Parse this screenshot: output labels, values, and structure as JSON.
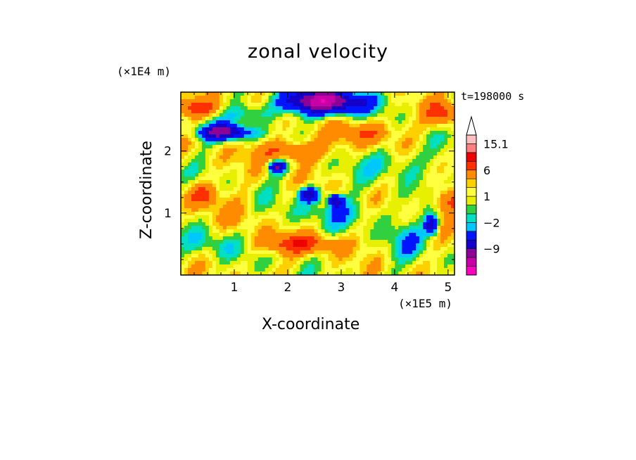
{
  "chart_data": {
    "type": "heatmap",
    "title": "zonal velocity",
    "xlabel": "X-coordinate",
    "ylabel": "Z-coordinate",
    "x_unit_label": "(×1E5 m)",
    "y_unit_label": "(×1E4 m)",
    "time_label": "t=198000 s",
    "xlim": [
      0,
      5.12
    ],
    "ylim": [
      0,
      2.95
    ],
    "x_ticks": [
      {
        "value": 1,
        "label": "1"
      },
      {
        "value": 2,
        "label": "2"
      },
      {
        "value": 3,
        "label": "3"
      },
      {
        "value": 4,
        "label": "4"
      },
      {
        "value": 5,
        "label": "5"
      }
    ],
    "y_ticks": [
      {
        "value": 1,
        "label": "1"
      },
      {
        "value": 2,
        "label": "2"
      }
    ],
    "colorbar": {
      "levels": [
        -15,
        -12,
        -9,
        -6,
        -3,
        -2,
        -1,
        0,
        1,
        2,
        3,
        6,
        9,
        12,
        15.1
      ],
      "colors": [
        "#ff00c0",
        "#c800a8",
        "#8c0096",
        "#1400c8",
        "#0014ff",
        "#00c8ff",
        "#00e0c0",
        "#30d040",
        "#e6f000",
        "#ffff40",
        "#ffd000",
        "#ff8c00",
        "#ff3000",
        "#ee0000",
        "#ff8080",
        "#ffc0c0"
      ],
      "tick_labels": [
        {
          "value": 15.1,
          "label": "15.1"
        },
        {
          "value": 6,
          "label": "6"
        },
        {
          "value": 1,
          "label": "1"
        },
        {
          "value": -2,
          "label": "−2"
        },
        {
          "value": -9,
          "label": "−9"
        }
      ]
    },
    "field_features": [
      {
        "x": 2.7,
        "z": 2.8,
        "sx": 0.8,
        "sz": 0.2,
        "amp": -14
      },
      {
        "x": 0.8,
        "z": 2.3,
        "sx": 0.5,
        "sz": 0.12,
        "amp": -11
      },
      {
        "x": 1.8,
        "z": 1.75,
        "sx": 0.15,
        "sz": 0.1,
        "amp": -11
      },
      {
        "x": 2.4,
        "z": 1.3,
        "sx": 0.2,
        "sz": 0.12,
        "amp": -10
      },
      {
        "x": 2.9,
        "z": 1.2,
        "sx": 0.15,
        "sz": 0.12,
        "amp": -9
      },
      {
        "x": 4.7,
        "z": 0.8,
        "sx": 0.12,
        "sz": 0.15,
        "amp": -9
      },
      {
        "x": 0.3,
        "z": 2.7,
        "sx": 0.4,
        "sz": 0.15,
        "amp": 7
      },
      {
        "x": 2.0,
        "z": 2.0,
        "sx": 0.6,
        "sz": 0.18,
        "amp": 6
      },
      {
        "x": 3.5,
        "z": 2.3,
        "sx": 0.5,
        "sz": 0.2,
        "amp": 5
      },
      {
        "x": 0.4,
        "z": 1.3,
        "sx": 0.3,
        "sz": 0.2,
        "amp": 6
      },
      {
        "x": 2.2,
        "z": 0.5,
        "sx": 0.8,
        "sz": 0.15,
        "amp": 6
      },
      {
        "x": 5.0,
        "z": 1.2,
        "sx": 0.25,
        "sz": 0.2,
        "amp": 6
      },
      {
        "x": 4.9,
        "z": 2.6,
        "sx": 0.3,
        "sz": 0.2,
        "amp": 6
      },
      {
        "x": 0.6,
        "z": 0.5,
        "sx": 0.5,
        "sz": 0.25,
        "amp": -3
      },
      {
        "x": 3.0,
        "z": 1.0,
        "sx": 1.0,
        "sz": 0.2,
        "amp": -2.5
      },
      {
        "x": 4.2,
        "z": 0.6,
        "sx": 0.4,
        "sz": 0.3,
        "amp": -3
      },
      {
        "x": 1.2,
        "z": 0.9,
        "sx": 0.4,
        "sz": 0.3,
        "amp": 1.5
      },
      {
        "x": 4.0,
        "z": 1.8,
        "sx": 0.6,
        "sz": 0.25,
        "amp": -3
      },
      {
        "x": 1.3,
        "z": 2.6,
        "sx": 0.4,
        "sz": 0.15,
        "amp": -4
      }
    ]
  }
}
